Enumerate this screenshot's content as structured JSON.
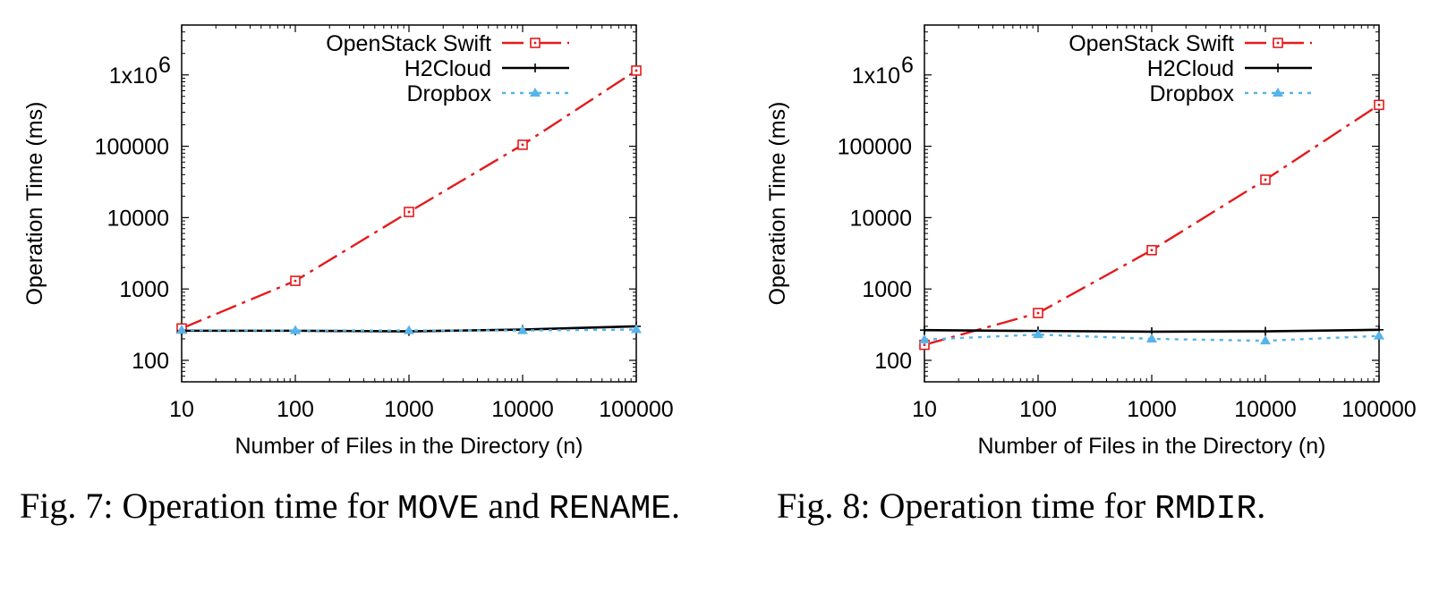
{
  "colors": {
    "swift": "#e41a1c",
    "h2cloud": "#000000",
    "dropbox": "#56b4e9",
    "axis": "#000000"
  },
  "chart_data": [
    {
      "type": "line",
      "title": "",
      "xlabel": "Number of Files in the Directory (n)",
      "ylabel": "Operation Time (ms)",
      "x_scale": "log",
      "y_scale": "log",
      "x": [
        10,
        100,
        1000,
        10000,
        100000
      ],
      "x_tick_labels": [
        "10",
        "100",
        "1000",
        "10000",
        "100000"
      ],
      "y_ticks": [
        100,
        1000,
        10000,
        100000,
        1000000
      ],
      "y_tick_labels": [
        "100",
        "1000",
        "10000",
        "100000",
        "1x10"
      ],
      "y_tick_superscript": "6",
      "xlim": [
        10,
        100000
      ],
      "ylim": [
        50,
        5000000
      ],
      "grid": false,
      "legend_position": "top-right",
      "series": [
        {
          "name": "OpenStack Swift",
          "key": "swift",
          "values": [
            280,
            1300,
            12000,
            105000,
            1150000
          ]
        },
        {
          "name": "H2Cloud",
          "key": "h2cloud",
          "values": [
            260,
            260,
            255,
            270,
            300
          ]
        },
        {
          "name": "Dropbox",
          "key": "dropbox",
          "values": [
            265,
            262,
            262,
            262,
            270
          ]
        }
      ]
    },
    {
      "type": "line",
      "title": "",
      "xlabel": "Number of Files in the Directory (n)",
      "ylabel": "Operation Time (ms)",
      "x_scale": "log",
      "y_scale": "log",
      "x": [
        10,
        100,
        1000,
        10000,
        100000
      ],
      "x_tick_labels": [
        "10",
        "100",
        "1000",
        "10000",
        "100000"
      ],
      "y_ticks": [
        100,
        1000,
        10000,
        100000,
        1000000
      ],
      "y_tick_labels": [
        "100",
        "1000",
        "10000",
        "100000",
        "1x10"
      ],
      "y_tick_superscript": "6",
      "xlim": [
        10,
        100000
      ],
      "ylim": [
        50,
        5000000
      ],
      "grid": false,
      "legend_position": "top-right",
      "series": [
        {
          "name": "OpenStack Swift",
          "key": "swift",
          "values": [
            165,
            460,
            3500,
            34000,
            380000
          ]
        },
        {
          "name": "H2Cloud",
          "key": "h2cloud",
          "values": [
            265,
            258,
            252,
            255,
            268
          ]
        },
        {
          "name": "Dropbox",
          "key": "dropbox",
          "values": [
            195,
            230,
            200,
            188,
            220
          ]
        }
      ]
    }
  ],
  "captions": [
    {
      "prefix": "Fig. 7: Operation time for ",
      "code1": "MOVE",
      "middle": " and ",
      "code2": "RENAME",
      "suffix": "."
    },
    {
      "prefix": "Fig. 8: Operation time for ",
      "code1": "RMDIR",
      "suffix": "."
    }
  ]
}
